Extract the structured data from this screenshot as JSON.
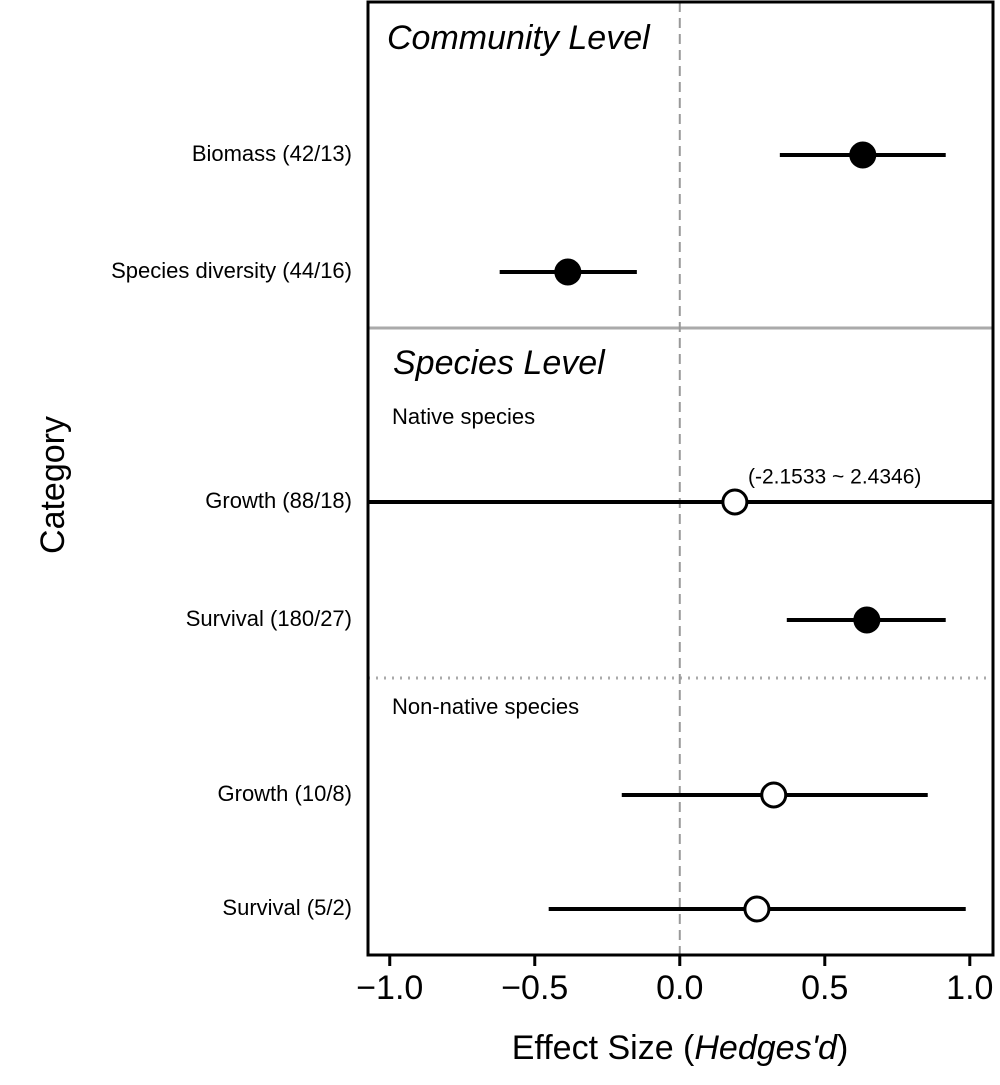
{
  "chart_data": {
    "type": "forest",
    "y_label": "Category",
    "x_label": [
      "Effect Size (",
      "Hedges'd",
      ")"
    ],
    "section_labels": [
      "Community Level",
      "Species Level"
    ],
    "group_labels": [
      "Native species",
      "Non-native species"
    ],
    "categories": [
      "Biomass (42/13)",
      "Species diversity (44/16)",
      "Growth (88/18)",
      "Survival (180/27)",
      "Growth (10/8)",
      "Survival (5/2)"
    ],
    "values": [
      0.631,
      -0.386,
      0.19,
      0.645,
      0.324,
      0.266
    ],
    "lower": [
      0.345,
      -0.621,
      -2.1533,
      0.369,
      -0.2,
      -0.452
    ],
    "upper": [
      0.917,
      -0.148,
      2.4346,
      0.917,
      0.855,
      0.986
    ],
    "filled": [
      true,
      true,
      false,
      true,
      false,
      false
    ],
    "annotation": "(-2.1533 ~ 2.4346)",
    "reference_line": 0,
    "color": "#000000",
    "xlim": [
      -1.075,
      1.08
    ],
    "xticks": [
      {
        "value": -1,
        "label": "−1.0"
      },
      {
        "value": -0.5,
        "label": "−0.5"
      },
      {
        "value": 0,
        "label": "0.0"
      },
      0.5,
      {
        "value": 1,
        "label": "1.0"
      }
    ]
  }
}
